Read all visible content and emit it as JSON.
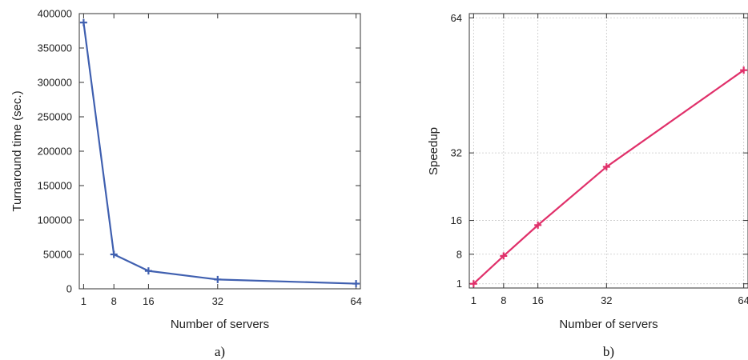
{
  "chart_data": [
    {
      "type": "line",
      "caption": "a)",
      "xlabel": "Number of servers",
      "ylabel": "Turnaround time (sec.)",
      "x": [
        1,
        8,
        16,
        32,
        64
      ],
      "y": [
        387000,
        50000,
        26000,
        13500,
        7500
      ],
      "xticks": [
        1,
        8,
        16,
        32,
        64
      ],
      "yticks": [
        0,
        50000,
        100000,
        150000,
        200000,
        250000,
        300000,
        350000,
        400000
      ],
      "xlim": [
        0,
        65
      ],
      "ylim": [
        0,
        400000
      ],
      "grid": false,
      "color": "#4060b0"
    },
    {
      "type": "line",
      "caption": "b)",
      "xlabel": "Number of servers",
      "ylabel": "Speedup",
      "x": [
        1,
        8,
        16,
        32,
        64
      ],
      "y": [
        1,
        7.6,
        14.9,
        28.7,
        51.6
      ],
      "xticks": [
        1,
        8,
        16,
        32,
        64
      ],
      "yticks": [
        1,
        8,
        16,
        32,
        64
      ],
      "xlim": [
        0,
        65
      ],
      "ylim": [
        0,
        65
      ],
      "grid": true,
      "color": "#e0306a"
    }
  ]
}
